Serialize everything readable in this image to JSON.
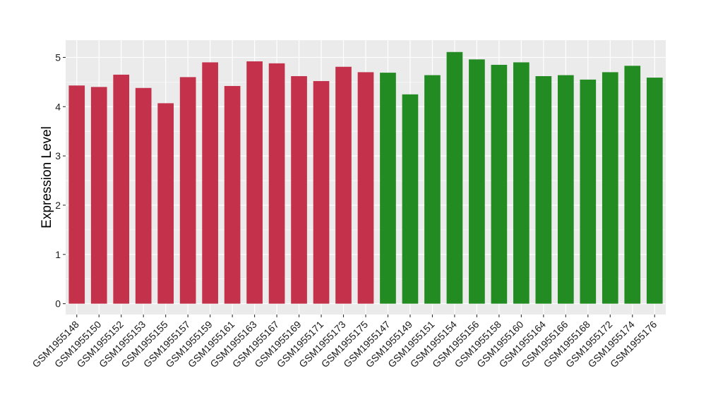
{
  "chart_data": {
    "type": "bar",
    "title": "",
    "xlabel": "",
    "ylabel": "Expression Level",
    "ylim": [
      -0.22,
      5.35
    ],
    "yticks": [
      0,
      1,
      2,
      3,
      4,
      5
    ],
    "grid": true,
    "legend": "none",
    "colors": {
      "group_a": "#C3314B",
      "group_b": "#228B22",
      "panel": "#EBEBEB",
      "grid": "#FFFFFF"
    },
    "categories": [
      "GSM1955148",
      "GSM1955150",
      "GSM1955152",
      "GSM1955153",
      "GSM1955155",
      "GSM1955157",
      "GSM1955159",
      "GSM1955161",
      "GSM1955163",
      "GSM1955167",
      "GSM1955169",
      "GSM1955171",
      "GSM1955173",
      "GSM1955175",
      "GSM1955147",
      "GSM1955149",
      "GSM1955151",
      "GSM1955154",
      "GSM1955156",
      "GSM1955158",
      "GSM1955160",
      "GSM1955164",
      "GSM1955166",
      "GSM1955168",
      "GSM1955172",
      "GSM1955174",
      "GSM1955176"
    ],
    "values": [
      4.43,
      4.4,
      4.65,
      4.38,
      4.07,
      4.6,
      4.9,
      4.42,
      4.92,
      4.88,
      4.62,
      4.52,
      4.81,
      4.7,
      4.69,
      4.25,
      4.64,
      5.11,
      4.96,
      4.85,
      4.9,
      4.62,
      4.64,
      4.55,
      4.7,
      4.83,
      4.59
    ],
    "groups": [
      "group_a",
      "group_a",
      "group_a",
      "group_a",
      "group_a",
      "group_a",
      "group_a",
      "group_a",
      "group_a",
      "group_a",
      "group_a",
      "group_a",
      "group_a",
      "group_a",
      "group_b",
      "group_b",
      "group_b",
      "group_b",
      "group_b",
      "group_b",
      "group_b",
      "group_b",
      "group_b",
      "group_b",
      "group_b",
      "group_b",
      "group_b"
    ]
  }
}
